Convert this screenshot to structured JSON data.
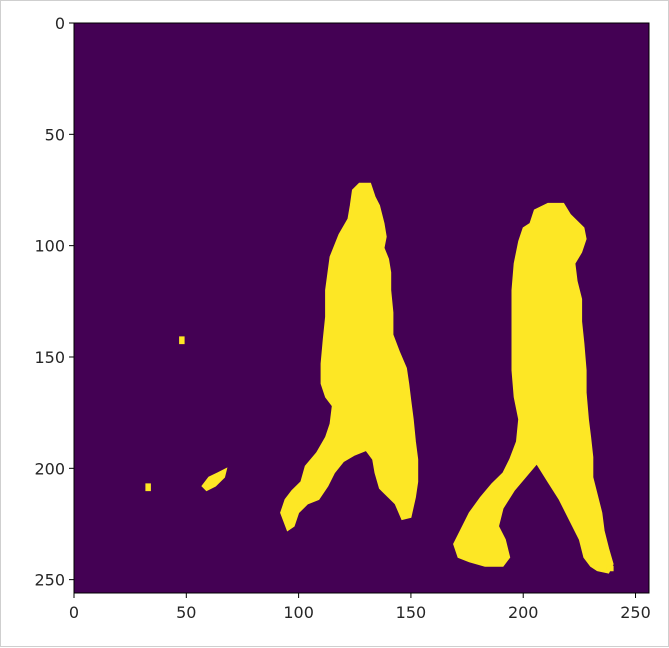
{
  "chart_data": {
    "type": "heatmap",
    "description_free": true,
    "title": "",
    "xlabel": "",
    "ylabel": "",
    "xlim": [
      0,
      256
    ],
    "ylim": [
      256,
      0
    ],
    "x_ticks": [
      0,
      50,
      100,
      150,
      200,
      250
    ],
    "y_ticks": [
      0,
      50,
      100,
      150,
      200,
      250
    ],
    "colormap": {
      "background_value": 0,
      "foreground_value": 1,
      "background_color": "#440154",
      "foreground_color": "#fde725"
    },
    "grid": false,
    "legend": "none",
    "foreground_regions": [
      {
        "name": "left-figure",
        "outline": [
          [
            123,
            82
          ],
          [
            124,
            75
          ],
          [
            127,
            72
          ],
          [
            132,
            72
          ],
          [
            134,
            78
          ],
          [
            136,
            82
          ],
          [
            138,
            90
          ],
          [
            139,
            96
          ],
          [
            138,
            101
          ],
          [
            140,
            106
          ],
          [
            141,
            112
          ],
          [
            141,
            120
          ],
          [
            142,
            130
          ],
          [
            142,
            140
          ],
          [
            145,
            148
          ],
          [
            148,
            155
          ],
          [
            149,
            162
          ],
          [
            150,
            170
          ],
          [
            151,
            178
          ],
          [
            152,
            188
          ],
          [
            153,
            196
          ],
          [
            153,
            206
          ],
          [
            152,
            213
          ],
          [
            150,
            222
          ],
          [
            146,
            223
          ],
          [
            143,
            216
          ],
          [
            139,
            212
          ],
          [
            136,
            209
          ],
          [
            134,
            202
          ],
          [
            133,
            196
          ],
          [
            130,
            192
          ],
          [
            125,
            194
          ],
          [
            120,
            197
          ],
          [
            116,
            202
          ],
          [
            113,
            208
          ],
          [
            109,
            214
          ],
          [
            104,
            216
          ],
          [
            100,
            220
          ],
          [
            98,
            226
          ],
          [
            95,
            228
          ],
          [
            92,
            220
          ],
          [
            94,
            214
          ],
          [
            97,
            210
          ],
          [
            101,
            206
          ],
          [
            103,
            199
          ],
          [
            108,
            193
          ],
          [
            112,
            186
          ],
          [
            114,
            180
          ],
          [
            115,
            172
          ],
          [
            112,
            168
          ],
          [
            110,
            162
          ],
          [
            110,
            153
          ],
          [
            111,
            142
          ],
          [
            112,
            132
          ],
          [
            112,
            120
          ],
          [
            114,
            105
          ],
          [
            118,
            95
          ],
          [
            122,
            88
          ]
        ]
      },
      {
        "name": "right-figure",
        "outline": [
          [
            203,
            90
          ],
          [
            205,
            84
          ],
          [
            211,
            81
          ],
          [
            218,
            81
          ],
          [
            221,
            86
          ],
          [
            227,
            92
          ],
          [
            228,
            97
          ],
          [
            226,
            103
          ],
          [
            223,
            108
          ],
          [
            224,
            116
          ],
          [
            226,
            124
          ],
          [
            226,
            134
          ],
          [
            227,
            144
          ],
          [
            228,
            156
          ],
          [
            228,
            166
          ],
          [
            229,
            178
          ],
          [
            230,
            186
          ],
          [
            231,
            195
          ],
          [
            231,
            204
          ],
          [
            233,
            212
          ],
          [
            235,
            220
          ],
          [
            236,
            228
          ],
          [
            238,
            236
          ],
          [
            240,
            243
          ],
          [
            238,
            247
          ],
          [
            233,
            246
          ],
          [
            230,
            244
          ],
          [
            227,
            240
          ],
          [
            225,
            232
          ],
          [
            221,
            224
          ],
          [
            216,
            214
          ],
          [
            211,
            206
          ],
          [
            206,
            198
          ],
          [
            201,
            204
          ],
          [
            196,
            210
          ],
          [
            191,
            218
          ],
          [
            189,
            226
          ],
          [
            192,
            232
          ],
          [
            194,
            240
          ],
          [
            191,
            244
          ],
          [
            183,
            244
          ],
          [
            176,
            242
          ],
          [
            171,
            240
          ],
          [
            169,
            234
          ],
          [
            172,
            228
          ],
          [
            176,
            220
          ],
          [
            181,
            213
          ],
          [
            186,
            207
          ],
          [
            191,
            202
          ],
          [
            194,
            196
          ],
          [
            197,
            188
          ],
          [
            198,
            178
          ],
          [
            196,
            168
          ],
          [
            195,
            156
          ],
          [
            195,
            144
          ],
          [
            195,
            132
          ],
          [
            195,
            120
          ],
          [
            196,
            108
          ],
          [
            198,
            98
          ],
          [
            200,
            92
          ]
        ]
      },
      {
        "name": "blob-small",
        "outline": [
          [
            57,
            208
          ],
          [
            60,
            204
          ],
          [
            64,
            202
          ],
          [
            68,
            200
          ],
          [
            67,
            204
          ],
          [
            63,
            208
          ],
          [
            59,
            210
          ]
        ]
      },
      {
        "name": "speck-a",
        "outline": [
          [
            47,
            141
          ],
          [
            49,
            141
          ],
          [
            49,
            144
          ],
          [
            47,
            144
          ]
        ]
      },
      {
        "name": "speck-b",
        "outline": [
          [
            32,
            207
          ],
          [
            34,
            207
          ],
          [
            34,
            210
          ],
          [
            32,
            210
          ]
        ]
      },
      {
        "name": "speck-c",
        "outline": [
          [
            237,
            244
          ],
          [
            240,
            244
          ],
          [
            240,
            246
          ],
          [
            237,
            246
          ]
        ]
      }
    ]
  }
}
